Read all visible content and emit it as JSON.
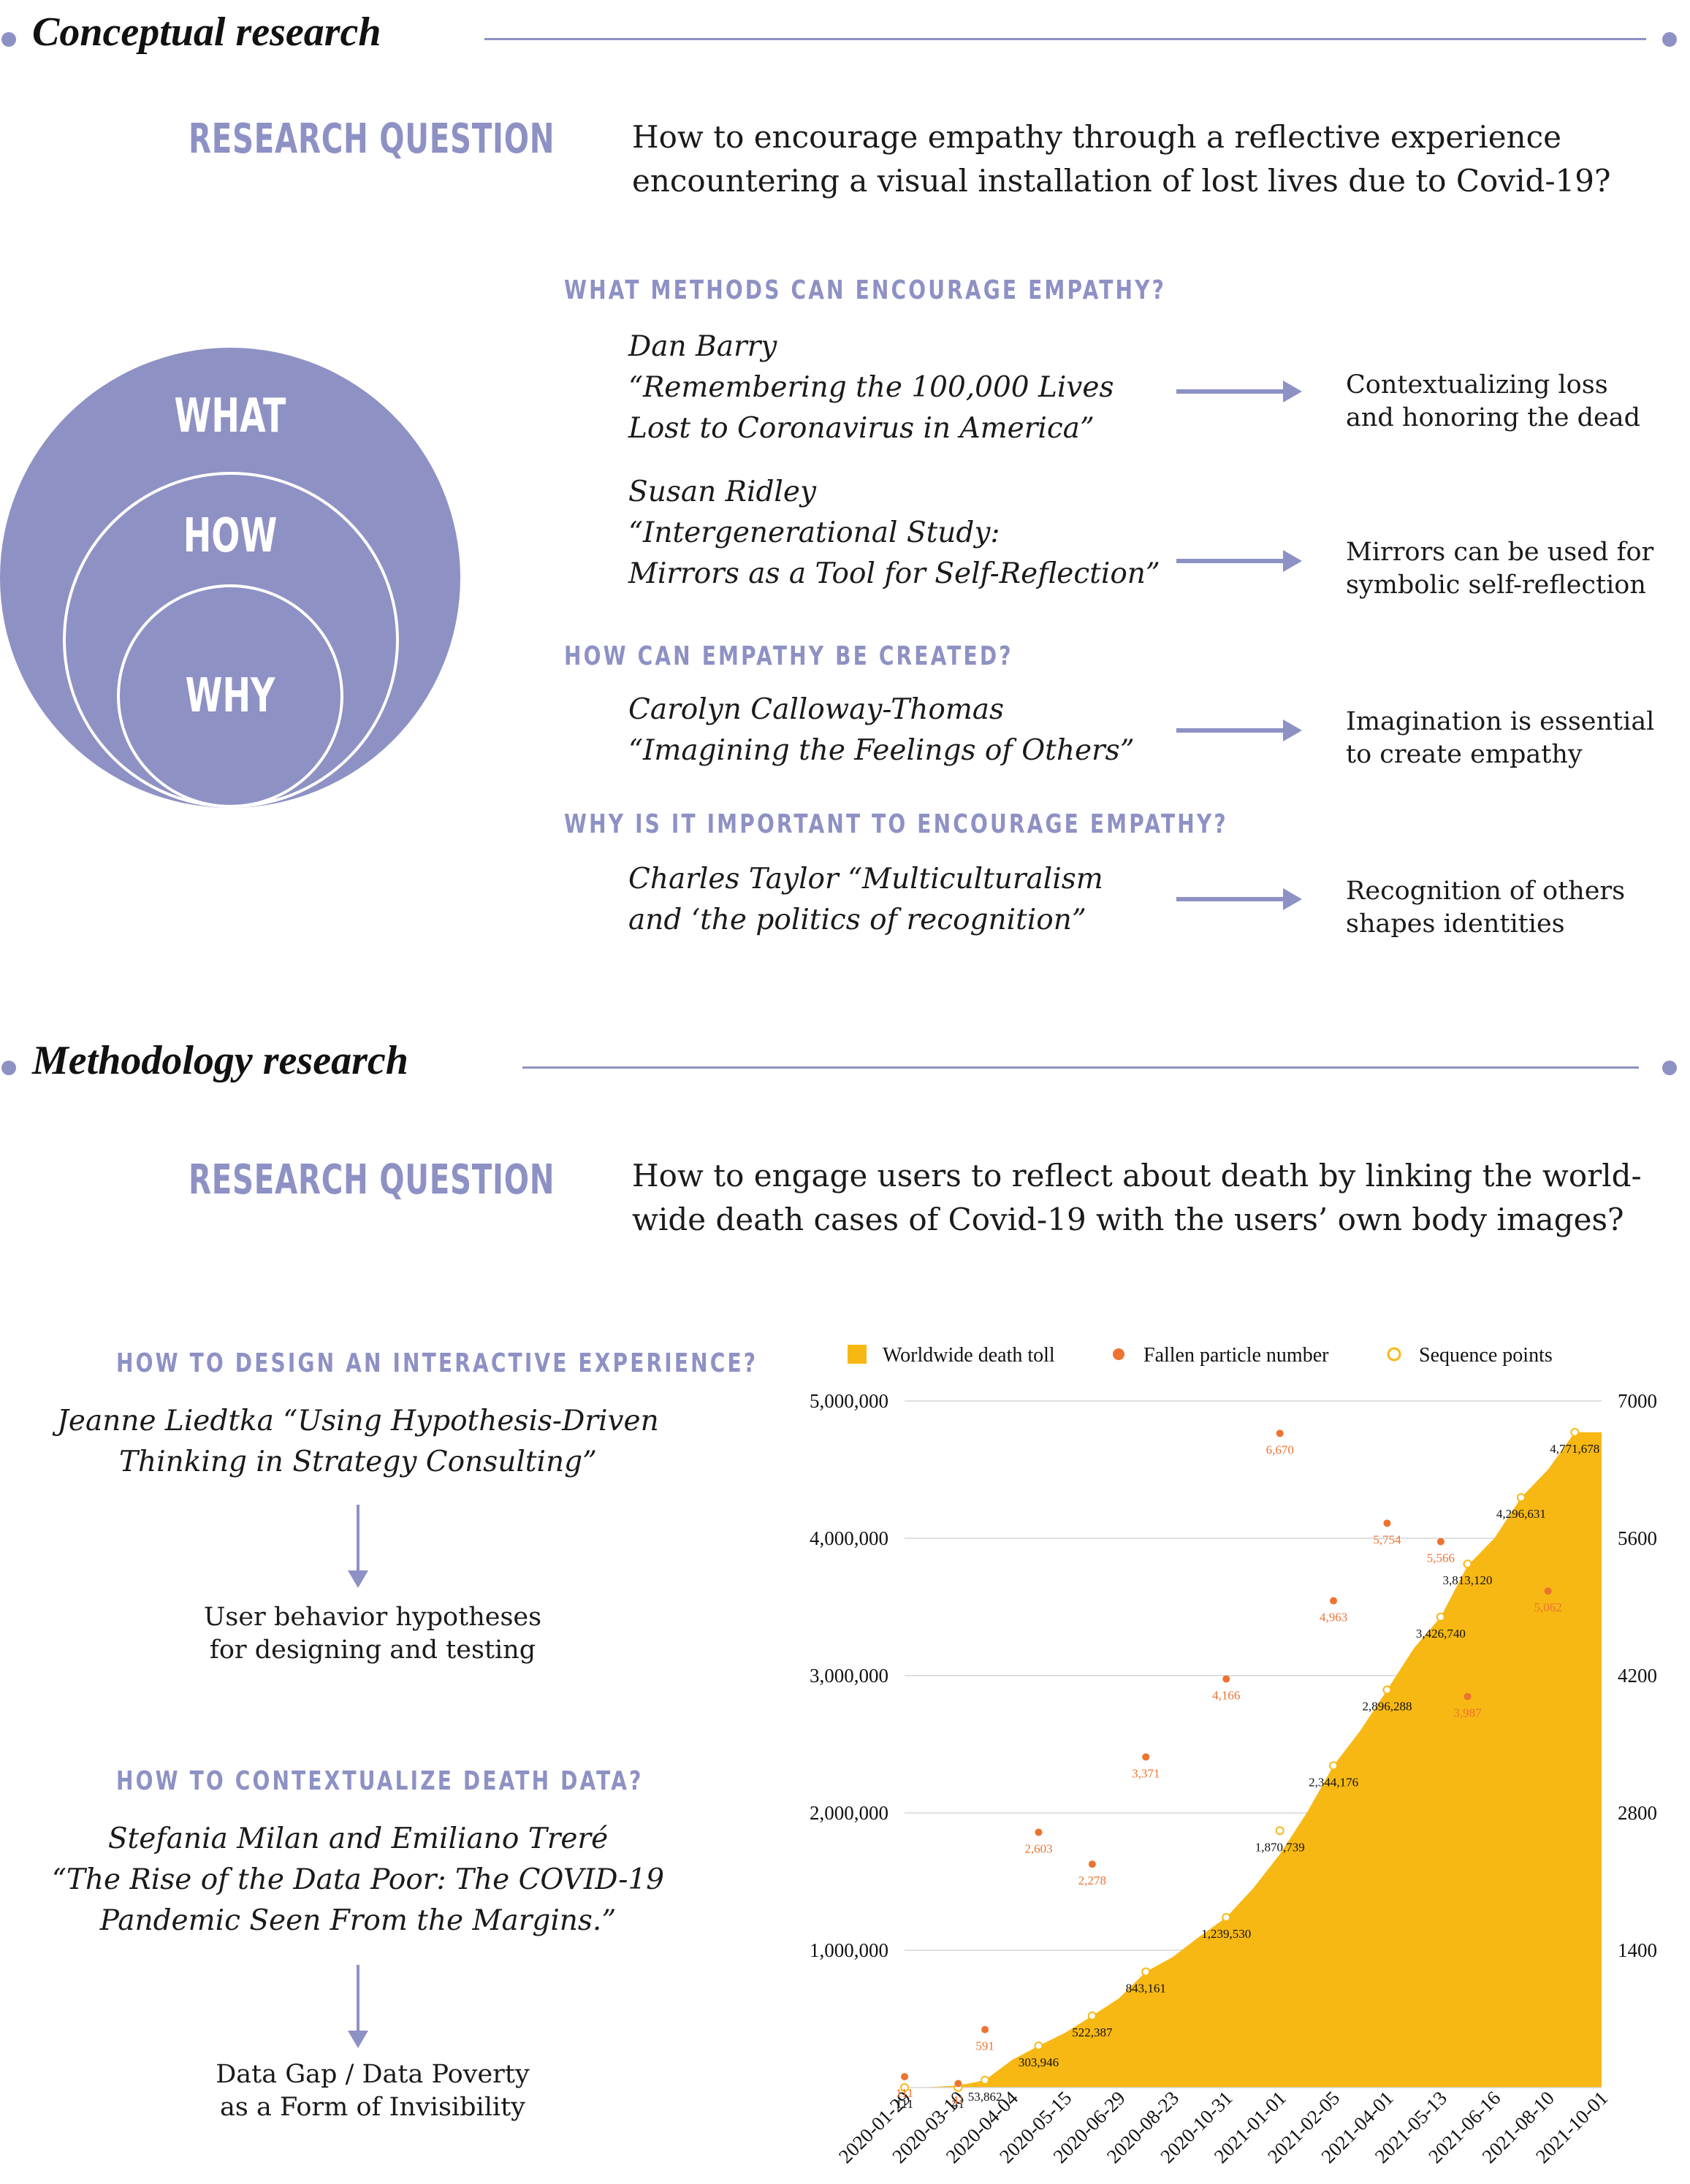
{
  "conceptual": {
    "section_title": "Conceptual research",
    "rq_label": "RESEARCH QUESTION",
    "rq_text": "How to encourage empathy through a reflective experience\nencountering a visual installation of lost lives due to Covid-19?",
    "circles": {
      "outer": "WHAT",
      "middle": "HOW",
      "inner": "WHY"
    },
    "circle_color": "#8e91c4",
    "q1": "WHAT METHODS CAN ENCOURAGE EMPATHY?",
    "q2": "HOW CAN EMPATHY BE CREATED?",
    "q3": "WHY IS IT IMPORTANT TO ENCOURAGE EMPATHY?",
    "refs": [
      {
        "ref": "Dan Barry\n“Remembering the 100,000 Lives\nLost to Coronavirus in America”",
        "result": "Contextualizing loss\nand honoring the dead"
      },
      {
        "ref": "Susan Ridley\n“Intergenerational Study:\nMirrors as a Tool for Self-Reflection”",
        "result": "Mirrors can be used for\nsymbolic self-reflection"
      },
      {
        "ref": "Carolyn Calloway-Thomas\n“Imagining the Feelings of Others”",
        "result": "Imagination is essential\nto create empathy"
      },
      {
        "ref": "Charles Taylor  “Multiculturalism\nand ‘the politics of recognition”",
        "result": "Recognition of others\nshapes identities"
      }
    ]
  },
  "methodology": {
    "section_title": "Methodology research",
    "rq_label": "RESEARCH QUESTION",
    "rq_text": "How to engage users to reflect about death by linking the world-\nwide death cases of Covid-19 with the users’ own body images?",
    "q1": "HOW TO DESIGN AN INTERACTIVE EXPERIENCE?",
    "ref1": "Jeanne Liedtka “Using Hypothesis-Driven\nThinking in Strategy Consulting”",
    "res1": "User behavior hypotheses\nfor designing and testing",
    "q2": "HOW TO CONTEXTUALIZE DEATH DATA?",
    "ref2": "Stefania Milan and Emiliano Treré\n“The Rise of the Data Poor: The COVID-19\nPandemic Seen From the Margins.”",
    "res2": "Data Gap / Data Poverty\nas a Form of Invisibility"
  },
  "chart_data": {
    "type": "area",
    "x_ticks": [
      "2020-01-29",
      "2020-03-10",
      "2020-04-04",
      "2020-05-15",
      "2020-06-29",
      "2020-08-23",
      "2020-10-31",
      "2021-01-01",
      "2021-02-05",
      "2021-04-01",
      "2021-05-13",
      "2021-06-16",
      "2021-08-10",
      "2021-10-01"
    ],
    "ylim_left": [
      0,
      5000000
    ],
    "yticks_left": [
      "1,000,000",
      "2,000,000",
      "3,000,000",
      "4,000,000",
      "5,000,000"
    ],
    "ylim_right": [
      0,
      7000
    ],
    "yticks_right": [
      "1400",
      "2800",
      "4200",
      "5600",
      "7000"
    ],
    "legend": [
      "Worldwide death toll",
      "Fallen particle number",
      "Sequence points"
    ],
    "colors": {
      "area": "#f7b814",
      "particle": "#ec7330",
      "sequence": "#f7b814",
      "label_dark": "#111111"
    },
    "area_series": [
      {
        "x": 0,
        "y": 0
      },
      {
        "x": 0.5,
        "y": 5000
      },
      {
        "x": 1,
        "y": 15000
      },
      {
        "x": 1.5,
        "y": 53862
      },
      {
        "x": 2,
        "y": 200000
      },
      {
        "x": 2.5,
        "y": 303946
      },
      {
        "x": 3,
        "y": 400000
      },
      {
        "x": 3.5,
        "y": 522387
      },
      {
        "x": 4,
        "y": 650000
      },
      {
        "x": 4.5,
        "y": 843161
      },
      {
        "x": 5,
        "y": 950000
      },
      {
        "x": 5.5,
        "y": 1100000
      },
      {
        "x": 6,
        "y": 1239530
      },
      {
        "x": 6.5,
        "y": 1450000
      },
      {
        "x": 7,
        "y": 1700000
      },
      {
        "x": 7.5,
        "y": 2000000
      },
      {
        "x": 8,
        "y": 2344176
      },
      {
        "x": 8.5,
        "y": 2600000
      },
      {
        "x": 9,
        "y": 2896288
      },
      {
        "x": 9.5,
        "y": 3200000
      },
      {
        "x": 10,
        "y": 3426740
      },
      {
        "x": 10.5,
        "y": 3800000
      },
      {
        "x": 11,
        "y": 4000000
      },
      {
        "x": 11.5,
        "y": 4296631
      },
      {
        "x": 12,
        "y": 4500000
      },
      {
        "x": 12.5,
        "y": 4771678
      },
      {
        "x": 13,
        "y": 4771678
      }
    ],
    "sequence_points": [
      {
        "x": 0,
        "y": 111,
        "label": "111"
      },
      {
        "x": 1,
        "y": 41,
        "label": "41"
      },
      {
        "x": 1.5,
        "y": 53862,
        "label": "53,862"
      },
      {
        "x": 2.5,
        "y": 303946,
        "label": "303,946"
      },
      {
        "x": 3.5,
        "y": 522387,
        "label": "522,387"
      },
      {
        "x": 4.5,
        "y": 843161,
        "label": "843,161"
      },
      {
        "x": 6,
        "y": 1239530,
        "label": "1,239,530"
      },
      {
        "x": 7,
        "y": 1870739,
        "label": "1,870,739"
      },
      {
        "x": 8,
        "y": 2344176,
        "label": "2,344,176"
      },
      {
        "x": 9,
        "y": 2896288,
        "label": "2,896,288"
      },
      {
        "x": 10,
        "y": 3426740,
        "label": "3,426,740"
      },
      {
        "x": 10.5,
        "y": 3813120,
        "label": "3,813,120"
      },
      {
        "x": 11.5,
        "y": 4296631,
        "label": "4,296,631"
      },
      {
        "x": 12.5,
        "y": 4771678,
        "label": "4,771,678"
      }
    ],
    "particle_points": [
      {
        "x": 0,
        "y": 111,
        "label": "111"
      },
      {
        "x": 1,
        "y": 41,
        "label": "41"
      },
      {
        "x": 1.5,
        "y": 591,
        "label": "591"
      },
      {
        "x": 2.5,
        "y": 2603,
        "label": "2,603"
      },
      {
        "x": 3.5,
        "y": 2278,
        "label": "2,278"
      },
      {
        "x": 4.5,
        "y": 3371,
        "label": "3,371"
      },
      {
        "x": 6,
        "y": 4166,
        "label": "4,166"
      },
      {
        "x": 7,
        "y": 6670,
        "label": "6,670"
      },
      {
        "x": 8,
        "y": 4963,
        "label": "4,963"
      },
      {
        "x": 9,
        "y": 5754,
        "label": "5,754"
      },
      {
        "x": 10,
        "y": 5566,
        "label": "5,566"
      },
      {
        "x": 10.5,
        "y": 3987,
        "label": "3,987"
      },
      {
        "x": 12,
        "y": 5062,
        "label": "5,062"
      }
    ]
  }
}
